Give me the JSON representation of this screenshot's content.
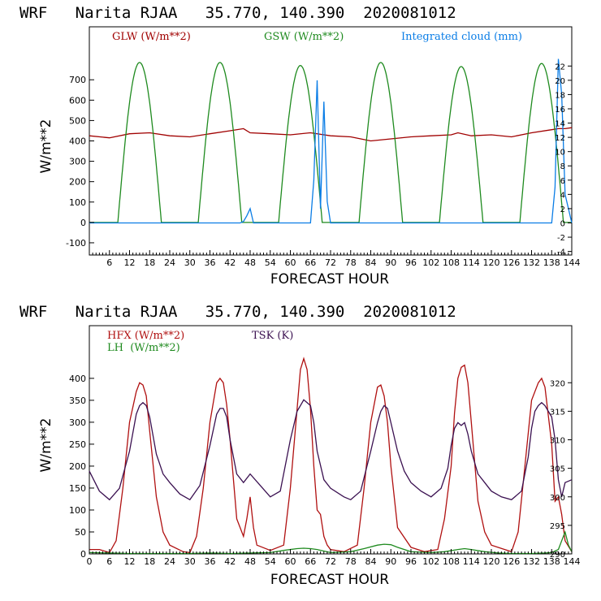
{
  "chart_data": [
    {
      "type": "line",
      "title": "WRF   Narita RJAA   35.770, 140.390  2020081012",
      "xlabel": "FORECAST HOUR",
      "ylabel": "W/m**2",
      "xlim": [
        0,
        144
      ],
      "ylim": [
        -160,
        960
      ],
      "xticks": [
        6,
        12,
        18,
        24,
        30,
        36,
        42,
        48,
        54,
        60,
        66,
        72,
        78,
        84,
        90,
        96,
        102,
        108,
        114,
        120,
        126,
        132,
        138,
        144
      ],
      "yticks": [
        -100,
        0,
        100,
        200,
        300,
        400,
        500,
        600,
        700
      ],
      "y2lim": [
        -4.5,
        27.5
      ],
      "y2ticks": [
        -4,
        -2,
        0,
        2,
        4,
        6,
        8,
        10,
        12,
        14,
        16,
        18,
        20,
        22
      ],
      "legend": [
        "GLW (W/m**2)",
        "GSW (W/m**2)",
        "Integrated cloud (mm)"
      ],
      "colors": {
        "glw": "#a00000",
        "gsw": "#1e8a1e",
        "cloud": "#0a7de6"
      },
      "series": [
        {
          "name": "GLW (W/m**2)",
          "axis": "left",
          "x": [
            0,
            6,
            12,
            18,
            24,
            30,
            36,
            42,
            46,
            48,
            54,
            60,
            66,
            72,
            78,
            84,
            90,
            96,
            102,
            108,
            110,
            114,
            120,
            126,
            132,
            138,
            140,
            142,
            144
          ],
          "values": [
            425,
            415,
            435,
            440,
            425,
            420,
            435,
            450,
            460,
            440,
            435,
            430,
            440,
            425,
            420,
            400,
            410,
            420,
            425,
            430,
            440,
            425,
            430,
            420,
            440,
            455,
            460,
            460,
            465
          ]
        },
        {
          "name": "GSW (W/m**2)",
          "axis": "left",
          "diurnal": true,
          "days": [
            {
              "sunrise": 8.5,
              "sunset": 21.5,
              "peak": 785
            },
            {
              "sunrise": 32.5,
              "sunset": 45.5,
              "peak": 785
            },
            {
              "sunrise": 56.5,
              "sunset": 69.5,
              "peak": 770
            },
            {
              "sunrise": 80.5,
              "sunset": 93.5,
              "peak": 785
            },
            {
              "sunrise": 104.5,
              "sunset": 117.5,
              "peak": 765
            },
            {
              "sunrise": 128.5,
              "sunset": 141.5,
              "peak": 780
            }
          ]
        },
        {
          "name": "Integrated cloud (mm)",
          "axis": "right",
          "x": [
            0,
            45,
            46,
            47,
            48,
            49,
            50,
            60,
            66,
            67,
            68,
            69,
            70,
            71,
            72,
            138,
            139,
            140,
            141,
            142,
            143,
            144
          ],
          "values": [
            0,
            0,
            0.2,
            1,
            2,
            0,
            0,
            0,
            0,
            6,
            20,
            2,
            17,
            3,
            0,
            0,
            5,
            23,
            18,
            4,
            2,
            0
          ]
        }
      ]
    },
    {
      "type": "line",
      "title": "WRF   Narita RJAA   35.770, 140.390  2020081012",
      "xlabel": "FORECAST HOUR",
      "ylabel": "W/m**2",
      "xlim": [
        0,
        144
      ],
      "ylim": [
        0,
        520
      ],
      "xticks": [
        0,
        6,
        12,
        18,
        24,
        30,
        36,
        42,
        48,
        54,
        60,
        66,
        72,
        78,
        84,
        90,
        96,
        102,
        108,
        114,
        120,
        126,
        132,
        138,
        144
      ],
      "yticks": [
        0,
        50,
        100,
        150,
        200,
        250,
        300,
        350,
        400
      ],
      "y2lim": [
        290,
        330
      ],
      "y2ticks": [
        290,
        295,
        300,
        305,
        310,
        315,
        320
      ],
      "legend": [
        "HFX (W/m**2)",
        "LH  (W/m**2)",
        "TSK (K)"
      ],
      "colors": {
        "hfx": "#b01010",
        "lh": "#1e8a1e",
        "tsk": "#3a1050"
      },
      "series": [
        {
          "name": "HFX (W/m**2)",
          "axis": "left",
          "x": [
            0,
            3,
            6,
            8,
            10,
            12,
            14,
            15,
            16,
            17,
            18,
            20,
            22,
            24,
            28,
            30,
            32,
            34,
            36,
            38,
            39,
            40,
            41,
            42,
            44,
            46,
            47,
            48,
            49,
            50,
            54,
            58,
            60,
            62,
            63,
            64,
            65,
            66,
            67,
            68,
            69,
            70,
            71,
            72,
            76,
            80,
            82,
            84,
            86,
            87,
            88,
            89,
            90,
            92,
            96,
            100,
            104,
            106,
            108,
            109,
            110,
            111,
            112,
            113,
            114,
            116,
            118,
            120,
            124,
            126,
            128,
            130,
            132,
            134,
            135,
            136,
            138,
            139,
            140,
            141,
            142,
            144
          ],
          "values": [
            10,
            10,
            3,
            30,
            150,
            300,
            370,
            390,
            385,
            360,
            280,
            130,
            50,
            20,
            5,
            3,
            40,
            150,
            300,
            390,
            400,
            390,
            340,
            260,
            80,
            40,
            80,
            130,
            60,
            20,
            8,
            20,
            150,
            330,
            420,
            445,
            420,
            330,
            200,
            100,
            90,
            40,
            20,
            10,
            5,
            20,
            150,
            300,
            380,
            385,
            360,
            300,
            200,
            60,
            15,
            5,
            10,
            80,
            200,
            320,
            400,
            425,
            430,
            390,
            300,
            120,
            50,
            20,
            10,
            5,
            50,
            200,
            350,
            390,
            400,
            380,
            250,
            120,
            130,
            90,
            30,
            5
          ]
        },
        {
          "name": "LH  (W/m**2)",
          "axis": "left",
          "x": [
            0,
            6,
            12,
            18,
            24,
            30,
            36,
            42,
            48,
            54,
            58,
            62,
            64,
            66,
            68,
            72,
            78,
            82,
            86,
            88,
            90,
            92,
            96,
            102,
            106,
            110,
            112,
            114,
            118,
            122,
            126,
            132,
            136,
            138,
            140,
            141,
            142,
            143,
            144
          ],
          "values": [
            3,
            2,
            1,
            1,
            1,
            1,
            2,
            1,
            2,
            3,
            8,
            12,
            13,
            12,
            10,
            3,
            5,
            12,
            20,
            22,
            21,
            15,
            5,
            3,
            5,
            10,
            12,
            10,
            5,
            2,
            1,
            1,
            2,
            3,
            10,
            30,
            50,
            20,
            5
          ]
        },
        {
          "name": "TSK (K)",
          "axis": "right",
          "x": [
            0,
            3,
            6,
            9,
            12,
            14,
            15,
            16,
            17,
            18,
            20,
            22,
            24,
            27,
            30,
            33,
            36,
            38,
            39,
            40,
            41,
            42,
            44,
            46,
            48,
            51,
            54,
            57,
            60,
            62,
            63,
            64,
            65,
            66,
            67,
            68,
            70,
            72,
            76,
            78,
            81,
            84,
            86,
            87,
            88,
            89,
            90,
            92,
            94,
            96,
            99,
            102,
            105,
            107,
            108,
            109,
            110,
            111,
            112,
            113,
            114,
            116,
            118,
            120,
            123,
            126,
            129,
            131,
            132,
            133,
            134,
            135,
            136,
            138,
            139,
            140,
            141,
            142,
            144
          ],
          "values": [
            304.5,
            301,
            299.5,
            301.5,
            308,
            314.5,
            316,
            316.5,
            316,
            314,
            307.5,
            304,
            302.5,
            300.5,
            299.5,
            302,
            309,
            314.5,
            315.5,
            315.5,
            314,
            310,
            304,
            302.5,
            304,
            302,
            300,
            301,
            310,
            315,
            316,
            317,
            316.5,
            316,
            313,
            308,
            303,
            301.5,
            300,
            299.5,
            301,
            308,
            313,
            315,
            316,
            315.5,
            313,
            308,
            304.5,
            302.5,
            301,
            300,
            301.5,
            305,
            309,
            312,
            313,
            312.5,
            313,
            311,
            308,
            304,
            302.5,
            301,
            300,
            299.5,
            301,
            307,
            312,
            315,
            316,
            316.5,
            316,
            314,
            310,
            303,
            300,
            302.5,
            303
          ]
        }
      ]
    }
  ]
}
